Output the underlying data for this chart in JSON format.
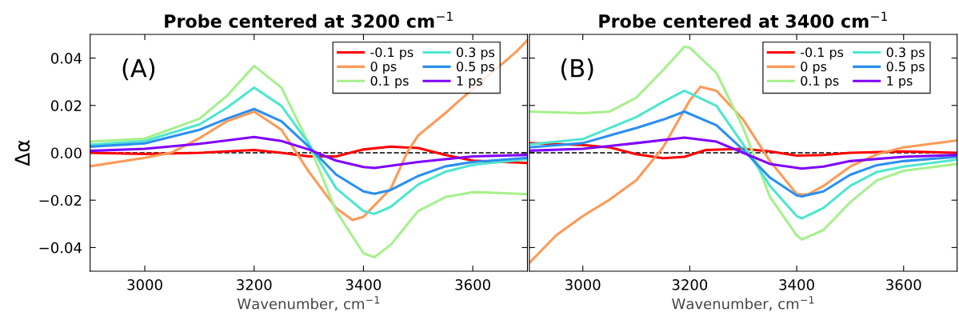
{
  "chart_data": [
    {
      "type": "line",
      "title": "Probe centered at 3200 cm$^{−1}$",
      "xlabel": "Wavenumber, cm$^{−1}$",
      "ylabel": "Δα",
      "xlim": [
        2900,
        3700
      ],
      "xticks": [
        3000,
        3200,
        3400,
        3600
      ],
      "ylim": [
        -0.05,
        0.05
      ],
      "yticks": [
        {
          "value": -0.04,
          "label": "−0.04"
        },
        {
          "value": -0.02,
          "label": "−0.02"
        },
        {
          "value": 0,
          "label": "0.00"
        },
        {
          "value": 0.02,
          "label": "0.02"
        },
        {
          "value": 0.04,
          "label": "0.04"
        }
      ],
      "grid": false,
      "legend": "top right",
      "annotations": [
        "(A)"
      ],
      "ref_lines": [
        {
          "axis": "y",
          "value": 0,
          "color": "#000000",
          "line_style": "dashed"
        }
      ],
      "series": [
        {
          "name": "-0.1 ps",
          "color": "#ff0000",
          "x": [
            2900,
            3000,
            3100,
            3200,
            3250,
            3300,
            3350,
            3400,
            3450,
            3500,
            3550,
            3600,
            3700
          ],
          "values": [
            0,
            -0.0005,
            0,
            0.0012,
            0,
            -0.0015,
            -0.0015,
            0.0014,
            0.0026,
            0.002,
            -0.0009,
            -0.0033,
            -0.0043
          ]
        },
        {
          "name": "0 ps",
          "color": "#ff9955",
          "x": [
            2900,
            3000,
            3050,
            3100,
            3150,
            3200,
            3250,
            3300,
            3350,
            3380,
            3400,
            3450,
            3480,
            3500,
            3550,
            3570,
            3680,
            3700
          ],
          "values": [
            -0.0057,
            -0.0021,
            0.0002,
            0.0062,
            0.0133,
            0.0174,
            0.0097,
            -0.008,
            -0.0234,
            -0.0284,
            -0.027,
            -0.0151,
            0.0002,
            0.0073,
            0.0168,
            0.021,
            0.0428,
            0.0476
          ]
        },
        {
          "name": "0.1 ps",
          "color": "#a6f08d",
          "x": [
            2900,
            3000,
            3100,
            3150,
            3200,
            3250,
            3300,
            3350,
            3400,
            3420,
            3450,
            3500,
            3550,
            3600,
            3650,
            3700
          ],
          "values": [
            0.0047,
            0.006,
            0.0144,
            0.024,
            0.0367,
            0.0275,
            0.0038,
            -0.0246,
            -0.0424,
            -0.0441,
            -0.0388,
            -0.0246,
            -0.0187,
            -0.0166,
            -0.017,
            -0.0175
          ]
        },
        {
          "name": "0.3 ps",
          "color": "#4ee6cf",
          "x": [
            2900,
            3000,
            3100,
            3150,
            3200,
            3250,
            3300,
            3350,
            3400,
            3420,
            3450,
            3500,
            3550,
            3600,
            3700
          ],
          "values": [
            0.0034,
            0.005,
            0.012,
            0.019,
            0.0275,
            0.0198,
            0.0038,
            -0.015,
            -0.0246,
            -0.0258,
            -0.0228,
            -0.0134,
            -0.008,
            -0.0051,
            -0.0027
          ]
        },
        {
          "name": "0.5 ps",
          "color": "#2a8ff0",
          "x": [
            2900,
            3000,
            3100,
            3150,
            3200,
            3250,
            3300,
            3350,
            3400,
            3420,
            3450,
            3500,
            3550,
            3600,
            3700
          ],
          "values": [
            0.0026,
            0.004,
            0.0097,
            0.0144,
            0.0185,
            0.0133,
            0.0026,
            -0.0092,
            -0.0163,
            -0.0173,
            -0.0157,
            -0.0098,
            -0.0057,
            -0.0039,
            -0.0021
          ]
        },
        {
          "name": "1 ps",
          "color": "#8000ff",
          "x": [
            2900,
            3000,
            3100,
            3200,
            3250,
            3300,
            3350,
            3400,
            3420,
            3500,
            3600,
            3700
          ],
          "values": [
            0.0008,
            0.0017,
            0.0038,
            0.0067,
            0.005,
            0.0014,
            -0.0033,
            -0.006,
            -0.0064,
            -0.0039,
            -0.0015,
            -0.0009
          ]
        }
      ]
    },
    {
      "type": "line",
      "title": "Probe centered at 3400 cm$^{−1}$",
      "xlabel": "Wavenumber, cm$^{−1}$",
      "xlim": [
        2900,
        3700
      ],
      "xticks": [
        3000,
        3200,
        3400,
        3600
      ],
      "ylim": [
        -0.05,
        0.05
      ],
      "yticks": [
        {
          "value": -0.04,
          "label": null
        },
        {
          "value": -0.02,
          "label": null
        },
        {
          "value": 0,
          "label": null
        },
        {
          "value": 0.02,
          "label": null
        },
        {
          "value": 0.04,
          "label": null
        }
      ],
      "tick_labels": "x",
      "grid": false,
      "legend": "top right",
      "annotations": [
        "(B)"
      ],
      "ref_lines": [
        {
          "axis": "y",
          "value": 0,
          "color": "#000000",
          "line_style": "dashed"
        }
      ],
      "series": [
        {
          "name": "-0.1 ps",
          "color": "#ff0000",
          "x": [
            2900,
            3000,
            3050,
            3100,
            3150,
            3190,
            3230,
            3300,
            3350,
            3400,
            3450,
            3500,
            3600,
            3700
          ],
          "values": [
            0.0041,
            0.0033,
            0.0023,
            -0.0006,
            -0.0023,
            -0.0017,
            0.0012,
            0.0017,
            0.0006,
            -0.0012,
            -0.0009,
            0,
            0.0006,
            0
          ]
        },
        {
          "name": "0 ps",
          "color": "#ff9955",
          "x": [
            2900,
            2950,
            3000,
            3050,
            3100,
            3150,
            3200,
            3220,
            3250,
            3300,
            3350,
            3400,
            3420,
            3450,
            3500,
            3550,
            3600,
            3700
          ],
          "values": [
            -0.0465,
            -0.0349,
            -0.0267,
            -0.0198,
            -0.0116,
            0.0023,
            0.0221,
            0.0279,
            0.0262,
            0.014,
            -0.0035,
            -0.0174,
            -0.0177,
            -0.014,
            -0.0058,
            -0.0006,
            0.0023,
            0.0052
          ]
        },
        {
          "name": "0.1 ps",
          "color": "#a6f08d",
          "x": [
            2900,
            3000,
            3050,
            3100,
            3150,
            3190,
            3200,
            3250,
            3300,
            3350,
            3400,
            3410,
            3450,
            3500,
            3550,
            3600,
            3700
          ],
          "values": [
            0.0174,
            0.0167,
            0.0174,
            0.0233,
            0.0349,
            0.0448,
            0.0444,
            0.0337,
            0.0105,
            -0.0186,
            -0.0349,
            -0.0366,
            -0.0326,
            -0.0209,
            -0.0116,
            -0.0076,
            -0.0047
          ]
        },
        {
          "name": "0.3 ps",
          "color": "#4ee6cf",
          "x": [
            2900,
            3000,
            3100,
            3150,
            3190,
            3250,
            3300,
            3350,
            3400,
            3410,
            3450,
            3500,
            3550,
            3600,
            3700
          ],
          "values": [
            0.0035,
            0.0058,
            0.0151,
            0.0215,
            0.0262,
            0.0198,
            0.0035,
            -0.014,
            -0.0267,
            -0.0277,
            -0.0233,
            -0.014,
            -0.0081,
            -0.0058,
            -0.0029
          ]
        },
        {
          "name": "0.5 ps",
          "color": "#2a8ff0",
          "x": [
            2900,
            3000,
            3100,
            3150,
            3190,
            3250,
            3300,
            3350,
            3400,
            3410,
            3450,
            3500,
            3550,
            3600,
            3700
          ],
          "values": [
            0.0023,
            0.0041,
            0.0105,
            0.014,
            0.0174,
            0.0116,
            0.0012,
            -0.0105,
            -0.018,
            -0.0184,
            -0.0163,
            -0.0093,
            -0.0052,
            -0.0035,
            -0.0017
          ]
        },
        {
          "name": "1 ps",
          "color": "#8000ff",
          "x": [
            2900,
            3000,
            3100,
            3190,
            3250,
            3300,
            3350,
            3410,
            3450,
            3500,
            3600,
            3700
          ],
          "values": [
            0.0009,
            0.0017,
            0.0041,
            0.0064,
            0.0047,
            0,
            -0.0047,
            -0.0067,
            -0.0058,
            -0.0035,
            -0.0017,
            -0.0009
          ]
        }
      ]
    }
  ]
}
